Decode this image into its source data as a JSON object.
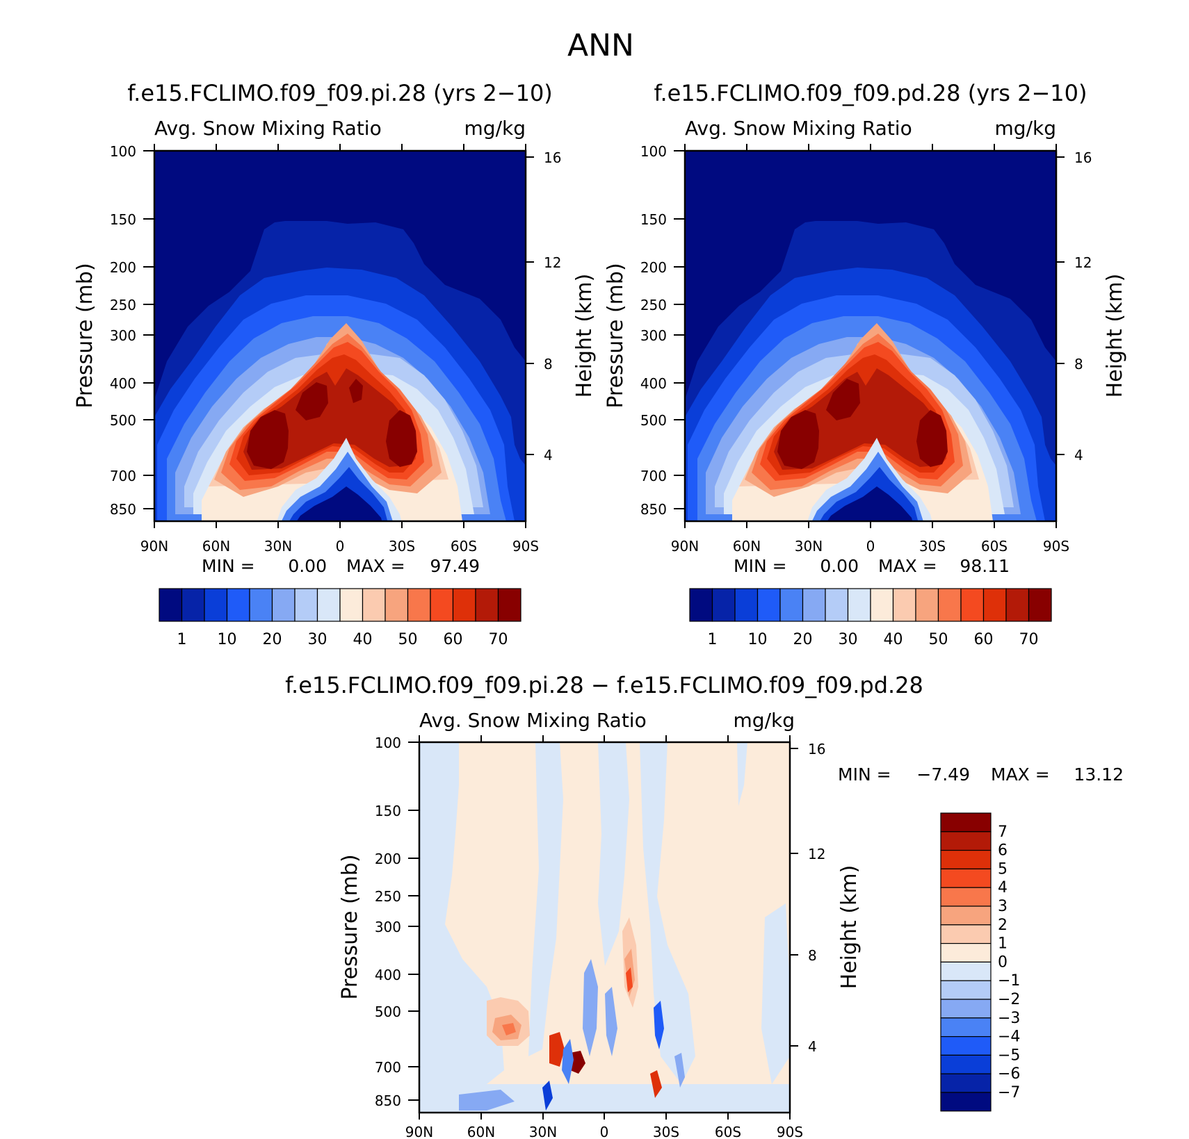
{
  "figure": {
    "title": "ANN"
  },
  "colors": {
    "abs_levels": [
      "#000a80",
      "#0623a8",
      "#0a3ed8",
      "#1f5bf8",
      "#4a82f5",
      "#86a9f3",
      "#b4ccf7",
      "#d9e7f8",
      "#fcebda",
      "#fbcbb0",
      "#f7a47e",
      "#f8774b",
      "#f44a20",
      "#de3009",
      "#b31a08",
      "#880000"
    ],
    "diff_levels": [
      "#000a80",
      "#0623a8",
      "#0a3ed8",
      "#1f5bf8",
      "#4a82f5",
      "#86a9f3",
      "#b4ccf7",
      "#d9e7f8",
      "#fcebda",
      "#fbcbb0",
      "#f7a47e",
      "#f8774b",
      "#f44a20",
      "#de3009",
      "#b31a08",
      "#880000"
    ]
  },
  "chart_data": [
    {
      "type": "heatmap",
      "title": "f.e15.FCLIMO.f09_f09.pi.28 (yrs 2−10)",
      "left_label": "Avg. Snow Mixing Ratio",
      "right_label": "mg/kg",
      "xlabel": "",
      "ylabel": "Pressure (mb)",
      "y2label": "Height (km)",
      "x_ticks": [
        "90N",
        "60N",
        "30N",
        "0",
        "30S",
        "60S",
        "90S"
      ],
      "y_ticks": [
        "100",
        "150",
        "200",
        "250",
        "300",
        "400",
        "500",
        "700",
        "850"
      ],
      "y2_ticks": [
        "16",
        "12",
        "8",
        "4"
      ],
      "stats": {
        "min_label": "MIN =",
        "min": "0.00",
        "max_label": "MAX =",
        "max": "97.49"
      },
      "colorbar_labels": [
        "1",
        "10",
        "20",
        "30",
        "40",
        "50",
        "60",
        "70"
      ],
      "x_range": [
        90,
        -90
      ],
      "y_range": [
        100,
        850
      ]
    },
    {
      "type": "heatmap",
      "title": "f.e15.FCLIMO.f09_f09.pd.28 (yrs 2−10)",
      "left_label": "Avg. Snow Mixing Ratio",
      "right_label": "mg/kg",
      "xlabel": "",
      "ylabel": "Pressure (mb)",
      "y2label": "Height (km)",
      "x_ticks": [
        "90N",
        "60N",
        "30N",
        "0",
        "30S",
        "60S",
        "90S"
      ],
      "y_ticks": [
        "100",
        "150",
        "200",
        "250",
        "300",
        "400",
        "500",
        "700",
        "850"
      ],
      "y2_ticks": [
        "16",
        "12",
        "8",
        "4"
      ],
      "stats": {
        "min_label": "MIN =",
        "min": "0.00",
        "max_label": "MAX =",
        "max": "98.11"
      },
      "colorbar_labels": [
        "1",
        "10",
        "20",
        "30",
        "40",
        "50",
        "60",
        "70"
      ],
      "x_range": [
        90,
        -90
      ],
      "y_range": [
        100,
        850
      ]
    },
    {
      "type": "heatmap",
      "title": "f.e15.FCLIMO.f09_f09.pi.28 − f.e15.FCLIMO.f09_f09.pd.28",
      "left_label": "Avg. Snow Mixing Ratio",
      "right_label": "mg/kg",
      "xlabel": "",
      "ylabel": "Pressure (mb)",
      "y2label": "Height (km)",
      "x_ticks": [
        "90N",
        "60N",
        "30N",
        "0",
        "30S",
        "60S",
        "90S"
      ],
      "y_ticks": [
        "100",
        "150",
        "200",
        "250",
        "300",
        "400",
        "500",
        "700",
        "850"
      ],
      "y2_ticks": [
        "16",
        "12",
        "8",
        "4"
      ],
      "stats": {
        "min_label": "MIN =",
        "min": "−7.49",
        "max_label": "MAX =",
        "max": "13.12"
      },
      "colorbar_labels": [
        "7",
        "6",
        "5",
        "4",
        "3",
        "2",
        "1",
        "0",
        "−1",
        "−2",
        "−3",
        "−4",
        "−5",
        "−6",
        "−7"
      ],
      "x_range": [
        90,
        -90
      ],
      "y_range": [
        100,
        850
      ]
    }
  ]
}
